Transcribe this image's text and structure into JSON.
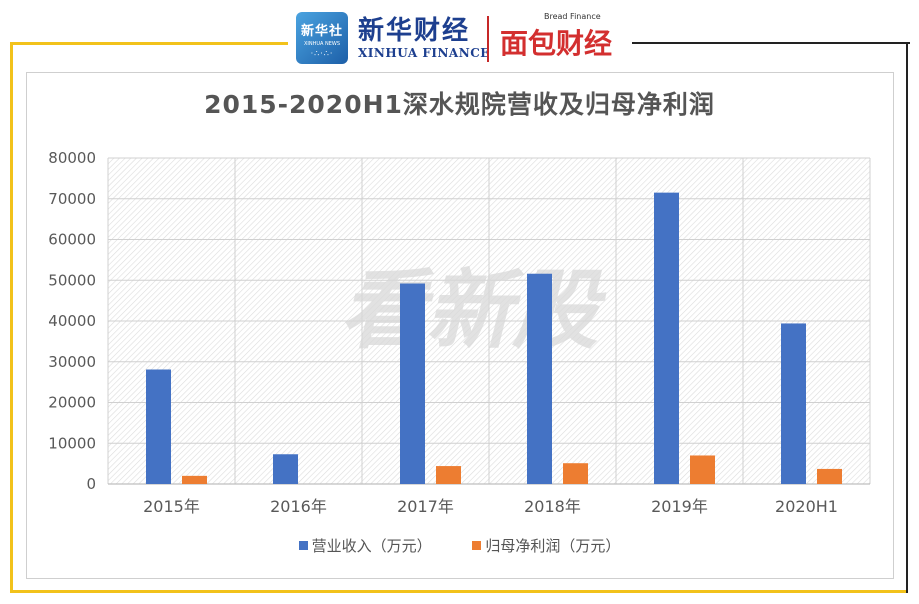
{
  "brand": {
    "xinhua_box_cn": "新华社",
    "xinhua_box_en": "XINHUA NEWS",
    "xinhua_finance_cn": "新华财经",
    "xinhua_finance_en": "XINHUA FINANCE",
    "bread_finance_en": "Bread Finance",
    "bread_finance_cn": "面包财经"
  },
  "watermark": "看新股",
  "colors": {
    "revenue": "#4472c4",
    "net_profit": "#ed7d31",
    "frame_accent": "#f2c21b"
  },
  "chart_data": {
    "type": "bar",
    "title": "2015-2020H1深水规院营收及归母净利润",
    "categories": [
      "2015年",
      "2016年",
      "2017年",
      "2018年",
      "2019年",
      "2020H1"
    ],
    "series": [
      {
        "name": "营业收入（万元）",
        "values": [
          28100,
          7300,
          49200,
          51600,
          71500,
          39400
        ]
      },
      {
        "name": "归母净利润（万元）",
        "values": [
          2000,
          null,
          4400,
          5100,
          7000,
          3700
        ]
      }
    ],
    "ylim": [
      0,
      80000
    ],
    "yticks": [
      "80000",
      "70000",
      "60000",
      "50000",
      "40000",
      "30000",
      "20000",
      "10000",
      "0"
    ],
    "grid": true,
    "legend_position": "bottom"
  }
}
